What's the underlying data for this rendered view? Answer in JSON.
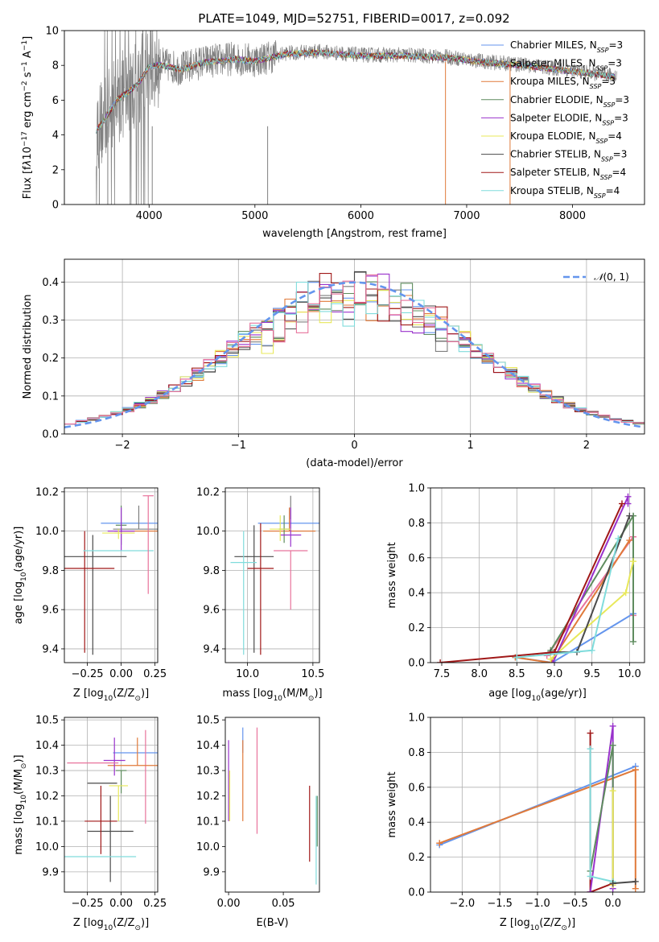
{
  "figure": {
    "title": "PLATE=1049, MJD=52751, FIBERID=0017, z=0.092"
  },
  "chart_data": [
    {
      "id": "spectrum",
      "type": "line",
      "xlabel": "wavelength [Angstrom, rest frame]",
      "ylabel_parts": [
        "Flux [f",
        "λ",
        "10",
        "−17",
        " erg cm",
        "−2",
        " s",
        "−1",
        " A",
        "−1",
        "]"
      ],
      "xlim": [
        3200,
        8680
      ],
      "ylim": [
        0,
        10
      ],
      "xticks": [
        4000,
        5000,
        6000,
        7000,
        8000
      ],
      "yticks": [
        0,
        2,
        4,
        6,
        8,
        10
      ],
      "grid": false,
      "legend_position": "top-right",
      "legend": [
        {
          "prefix": "Chabrier MILES, N",
          "sub": "SSP",
          "suffix": "=3",
          "color": "#6495ed"
        },
        {
          "prefix": "Salpeter MILES, N",
          "sub": "SSP",
          "suffix": "=3",
          "color": "#7f7f7f"
        },
        {
          "prefix": "Kroupa MILES, N",
          "sub": "SSP",
          "suffix": "=3",
          "color": "#e07a3a"
        },
        {
          "prefix": "Chabrier ELODIE, N",
          "sub": "SSP",
          "suffix": "=3",
          "color": "#5e8c5e"
        },
        {
          "prefix": "Salpeter ELODIE, N",
          "sub": "SSP",
          "suffix": "=3",
          "color": "#9932cc"
        },
        {
          "prefix": "Kroupa ELODIE, N",
          "sub": "SSP",
          "suffix": "=4",
          "color": "#e8e85a"
        },
        {
          "prefix": "Chabrier STELIB, N",
          "sub": "SSP",
          "suffix": "=3",
          "color": "#4a4a4a"
        },
        {
          "prefix": "Salpeter STELIB, N",
          "sub": "SSP",
          "suffix": "=4",
          "color": "#a01818"
        },
        {
          "prefix": "Kroupa STELIB, N",
          "sub": "SSP",
          "suffix": "=4",
          "color": "#80dcdc"
        }
      ],
      "continuum": {
        "x": [
          3500,
          3600,
          3700,
          3800,
          3900,
          4000,
          4100,
          4300,
          4500,
          4800,
          5000,
          5300,
          5600,
          6000,
          6400,
          6800,
          7200,
          7600,
          8000,
          8400
        ],
        "y": [
          4.3,
          5.1,
          6.1,
          6.5,
          7.0,
          8.0,
          8.1,
          7.8,
          8.2,
          8.4,
          8.3,
          8.7,
          8.8,
          8.6,
          8.6,
          8.5,
          8.2,
          8.0,
          7.7,
          7.4
        ]
      }
    },
    {
      "id": "residuals",
      "type": "step",
      "xlabel": "(data-model)/error",
      "ylabel": "Normed distribution",
      "xlim": [
        -2.5,
        2.5
      ],
      "ylim": [
        0,
        0.46
      ],
      "xticks": [
        -2,
        -1,
        0,
        1,
        2
      ],
      "yticks": [
        0.0,
        0.1,
        0.2,
        0.3,
        0.4
      ],
      "grid": true,
      "reference_label": "N(0,1)",
      "legend_position": "top-right"
    },
    {
      "id": "age-vs-Z",
      "type": "errorbar",
      "xlabel_parts": [
        "Z [log",
        "10",
        "(Z/Z",
        "⊙",
        ")]"
      ],
      "ylabel_parts": [
        "age  [log",
        "10",
        "(age/yr)]"
      ],
      "xlim": [
        -0.42,
        0.27
      ],
      "ylim": [
        9.33,
        10.22
      ],
      "xticks": [
        -0.25,
        0.0,
        0.25
      ],
      "yticks": [
        9.4,
        9.6,
        9.8,
        10.0,
        10.2
      ],
      "grid": true,
      "points": [
        {
          "x": 0.11,
          "xerr": 0.26,
          "y": 10.04,
          "yerr": [
            0.0,
            0.0
          ],
          "color": "#6495ed"
        },
        {
          "x": 0.13,
          "xerr": 0.19,
          "y": 10.01,
          "yerr": [
            0.0,
            0.12
          ],
          "color": "#7f7f7f"
        },
        {
          "x": 0.18,
          "xerr": 0.23,
          "y": 10.0,
          "yerr": [
            0.0,
            0.0
          ],
          "color": "#e07a3a"
        },
        {
          "x": 0.0,
          "xerr": 0.04,
          "y": 10.03,
          "yerr": [
            0.1,
            0.1
          ],
          "color": "#5e8c5e"
        },
        {
          "x": 0.0,
          "xerr": 0.1,
          "y": 10.0,
          "yerr": [
            0.1,
            0.12
          ],
          "color": "#9932cc"
        },
        {
          "x": -0.02,
          "xerr": 0.12,
          "y": 9.99,
          "yerr": [
            0.03,
            0.02
          ],
          "color": "#e8e85a"
        },
        {
          "x": -0.21,
          "xerr": 0.25,
          "y": 9.87,
          "yerr": [
            0.5,
            0.11
          ],
          "color": "#4a4a4a"
        },
        {
          "x": -0.27,
          "xerr": 0.22,
          "y": 9.81,
          "yerr": [
            0.43,
            0.19
          ],
          "color": "#a01818"
        },
        {
          "x": -0.02,
          "xerr": 0.26,
          "y": 9.9,
          "yerr": [
            0.0,
            0.0
          ],
          "color": "#80dcdc"
        },
        {
          "x": 0.2,
          "xerr": 0.04,
          "y": 10.18,
          "yerr": [
            0.5,
            0.0
          ],
          "color": "#e8739c"
        },
        {
          "x": -0.3,
          "xerr": 0.0,
          "y": 9.9,
          "yerr": [
            0.0,
            0.0
          ],
          "color": "#e8739c"
        }
      ]
    },
    {
      "id": "age-vs-mass",
      "type": "errorbar",
      "xlabel_parts": [
        "mass [log",
        "10",
        "(M/M",
        "⊙",
        ")]"
      ],
      "ylabel_parts": [],
      "xlim": [
        9.83,
        10.55
      ],
      "ylim": [
        9.33,
        10.22
      ],
      "xticks": [
        10.0,
        10.5
      ],
      "yticks": [
        9.4,
        9.6,
        9.8,
        10.0,
        10.2
      ],
      "grid": true,
      "points": [
        {
          "x": 10.36,
          "xerr": 0.28,
          "y": 10.04,
          "yerr": [
            0.0,
            0.0
          ],
          "color": "#6495ed"
        },
        {
          "x": 10.33,
          "xerr": 0.0,
          "y": 10.06,
          "yerr": [
            0.0,
            0.12
          ],
          "color": "#7f7f7f"
        },
        {
          "x": 10.32,
          "xerr": 0.2,
          "y": 10.0,
          "yerr": [
            0.0,
            0.12
          ],
          "color": "#e07a3a"
        },
        {
          "x": 10.28,
          "xerr": 0.04,
          "y": 10.01,
          "yerr": [
            0.07,
            0.07
          ],
          "color": "#5e8c5e"
        },
        {
          "x": 10.33,
          "xerr": 0.08,
          "y": 9.98,
          "yerr": [
            0.06,
            0.14
          ],
          "color": "#9932cc"
        },
        {
          "x": 10.25,
          "xerr": 0.08,
          "y": 10.01,
          "yerr": [
            0.06,
            0.07
          ],
          "color": "#e8e85a"
        },
        {
          "x": 10.05,
          "xerr": 0.15,
          "y": 9.87,
          "yerr": [
            0.49,
            0.16
          ],
          "color": "#4a4a4a"
        },
        {
          "x": 10.1,
          "xerr": 0.1,
          "y": 9.81,
          "yerr": [
            0.44,
            0.23
          ],
          "color": "#a01818"
        },
        {
          "x": 9.97,
          "xerr": 0.1,
          "y": 9.84,
          "yerr": [
            0.47,
            0.16
          ],
          "color": "#80dcdc"
        },
        {
          "x": 10.33,
          "xerr": 0.13,
          "y": 9.9,
          "yerr": [
            0.3,
            0.0
          ],
          "color": "#e8739c"
        }
      ]
    },
    {
      "id": "massweight-vs-age",
      "type": "line",
      "xlabel_parts": [
        "age  [log",
        "10",
        "(age/yr)]"
      ],
      "ylabel": "mass weight",
      "xlim": [
        7.35,
        10.2
      ],
      "ylim": [
        0,
        1.0
      ],
      "xticks": [
        7.5,
        8.0,
        8.5,
        9.0,
        9.5,
        10.0
      ],
      "yticks": [
        0.0,
        0.2,
        0.4,
        0.6,
        0.8,
        1.0
      ],
      "grid": true,
      "series": [
        {
          "x": [
            8.48,
            8.97,
            10.05
          ],
          "y": [
            0.03,
            0.0,
            0.28
          ],
          "color": "#6495ed"
        },
        {
          "x": [
            8.9,
            10.05,
            10.05
          ],
          "y": [
            0.04,
            0.72,
            0.27
          ],
          "color": "#e8739c"
        },
        {
          "x": [
            8.48,
            8.95,
            10.0
          ],
          "y": [
            0.03,
            0.0,
            0.7
          ],
          "color": "#e07a3a"
        },
        {
          "x": [
            8.95,
            10.05,
            10.05
          ],
          "y": [
            0.07,
            0.84,
            0.12
          ],
          "color": "#5e8c5e"
        },
        {
          "x": [
            8.98,
            9.98,
            9.98
          ],
          "y": [
            0.0,
            0.95,
            0.91
          ],
          "color": "#9932cc"
        },
        {
          "x": [
            8.95,
            9.95,
            10.05
          ],
          "y": [
            0.02,
            0.4,
            0.58
          ],
          "color": "#e8e85a"
        },
        {
          "x": [
            8.95,
            9.3,
            10.0
          ],
          "y": [
            0.06,
            0.06,
            0.84
          ],
          "color": "#4a4a4a"
        },
        {
          "x": [
            7.48,
            9.0,
            9.9
          ],
          "y": [
            0.0,
            0.06,
            0.91
          ],
          "color": "#a01818"
        },
        {
          "x": [
            8.5,
            9.5,
            9.85
          ],
          "y": [
            0.03,
            0.07,
            0.71
          ],
          "color": "#80dcdc"
        }
      ]
    },
    {
      "id": "mass-vs-Z",
      "type": "errorbar",
      "xlabel_parts": [
        "Z [log",
        "10",
        "(Z/Z",
        "⊙",
        ")]"
      ],
      "ylabel_parts": [
        "mass [log",
        "10",
        "(M/M",
        "⊙",
        ")]"
      ],
      "xlim": [
        -0.42,
        0.27
      ],
      "ylim": [
        9.82,
        10.51
      ],
      "xticks": [
        -0.25,
        0.0,
        0.25
      ],
      "yticks": [
        9.9,
        10.0,
        10.1,
        10.2,
        10.3,
        10.4,
        10.5
      ],
      "grid": true,
      "points": [
        {
          "x": 0.11,
          "xerr": 0.17,
          "y": 10.37,
          "yerr": [
            0.0,
            0.0
          ],
          "color": "#6495ed"
        },
        {
          "x": 0.18,
          "xerr": 0.0,
          "y": 10.33,
          "yerr": [
            0.24,
            0.13
          ],
          "color": "#e8739c"
        },
        {
          "x": 0.12,
          "xerr": 0.22,
          "y": 10.32,
          "yerr": [
            0.0,
            0.11
          ],
          "color": "#e07a3a"
        },
        {
          "x": 0.0,
          "xerr": 0.04,
          "y": 10.3,
          "yerr": [
            0.09,
            0.0
          ],
          "color": "#5e8c5e"
        },
        {
          "x": -0.05,
          "xerr": 0.08,
          "y": 10.34,
          "yerr": [
            0.06,
            0.09
          ],
          "color": "#9932cc"
        },
        {
          "x": -0.02,
          "xerr": 0.07,
          "y": 10.24,
          "yerr": [
            0.14,
            0.0
          ],
          "color": "#e8e85a"
        },
        {
          "x": -0.08,
          "xerr": 0.17,
          "y": 10.06,
          "yerr": [
            0.2,
            0.14
          ],
          "color": "#4a4a4a"
        },
        {
          "x": -0.15,
          "xerr": 0.12,
          "y": 10.1,
          "yerr": [
            0.13,
            0.14
          ],
          "color": "#a01818"
        },
        {
          "x": -0.17,
          "xerr": 0.28,
          "y": 9.96,
          "yerr": [
            0.0,
            0.0
          ],
          "color": "#80dcdc"
        },
        {
          "x": -0.14,
          "xerr": 0.11,
          "y": 10.25,
          "yerr": [
            0.0,
            0.0
          ],
          "color": "#4a4a4a"
        },
        {
          "x": -0.21,
          "xerr": 0.19,
          "y": 10.33,
          "yerr": [
            0.0,
            0.0
          ],
          "color": "#e8739c"
        }
      ]
    },
    {
      "id": "mass-vs-EBV",
      "type": "errorbar",
      "xlabel": "E(B-V)",
      "xlim": [
        -0.003,
        0.083
      ],
      "ylim": [
        9.82,
        10.51
      ],
      "xticks": [
        0.0,
        0.05
      ],
      "yticks": [
        9.9,
        10.0,
        10.1,
        10.2,
        10.3,
        10.4,
        10.5
      ],
      "grid": false,
      "points": [
        {
          "x": 0.0,
          "y": 10.3,
          "yerr": [
            0.2,
            0.12
          ],
          "color": "#9932cc"
        },
        {
          "x": 0.001,
          "y": 10.2,
          "yerr": [
            0.1,
            0.1
          ],
          "color": "#e8e85a"
        },
        {
          "x": 0.013,
          "y": 10.37,
          "yerr": [
            0.0,
            0.1
          ],
          "color": "#6495ed"
        },
        {
          "x": 0.013,
          "y": 10.27,
          "yerr": [
            0.17,
            0.15
          ],
          "color": "#e07a3a"
        },
        {
          "x": 0.026,
          "y": 10.27,
          "yerr": [
            0.22,
            0.2
          ],
          "color": "#e8739c"
        },
        {
          "x": 0.074,
          "y": 10.09,
          "yerr": [
            0.15,
            0.15
          ],
          "color": "#a01818"
        },
        {
          "x": 0.08,
          "y": 10.03,
          "yerr": [
            0.18,
            0.17
          ],
          "color": "#80dcdc"
        },
        {
          "x": 0.081,
          "y": 10.1,
          "yerr": [
            0.1,
            0.1
          ],
          "color": "#5e8c5e"
        }
      ]
    },
    {
      "id": "massweight-vs-Z",
      "type": "line",
      "xlabel_parts": [
        "Z [log",
        "10",
        "(Z/Z",
        "⊙",
        ")]"
      ],
      "ylabel": "mass weight",
      "xlim": [
        -2.42,
        0.42
      ],
      "ylim": [
        0,
        1.0
      ],
      "xticks": [
        -2.0,
        -1.5,
        -1.0,
        -0.5,
        0.0
      ],
      "yticks": [
        0.0,
        0.2,
        0.4,
        0.6,
        0.8,
        1.0
      ],
      "grid": true,
      "series": [
        {
          "x": [
            -2.3,
            0.3
          ],
          "y": [
            0.27,
            0.72
          ],
          "color": "#6495ed"
        },
        {
          "x": [
            -2.3,
            0.3
          ],
          "y": [
            0.28,
            0.7
          ],
          "color": "#e07a3a"
        },
        {
          "x": [
            0.3,
            0.3
          ],
          "y": [
            0.7,
            0.02
          ],
          "color": "#e07a3a"
        },
        {
          "x": [
            -0.3,
            -0.3,
            0.0
          ],
          "y": [
            0.91,
            0.0,
            0.05
          ],
          "color": "#a01818"
        },
        {
          "x": [
            -0.3,
            0.0,
            0.0
          ],
          "y": [
            0.0,
            0.95,
            0.02
          ],
          "color": "#9932cc"
        },
        {
          "x": [
            -0.3,
            0.0,
            0.0
          ],
          "y": [
            0.12,
            0.84,
            0.05
          ],
          "color": "#5e8c5e"
        },
        {
          "x": [
            0.0,
            0.0
          ],
          "y": [
            0.58,
            0.04
          ],
          "color": "#e8e85a"
        },
        {
          "x": [
            -0.3,
            -0.3,
            0.0
          ],
          "y": [
            0.82,
            0.09,
            0.06
          ],
          "color": "#80dcdc"
        },
        {
          "x": [
            0.0,
            0.3
          ],
          "y": [
            0.05,
            0.06
          ],
          "color": "#4a4a4a"
        }
      ]
    }
  ]
}
